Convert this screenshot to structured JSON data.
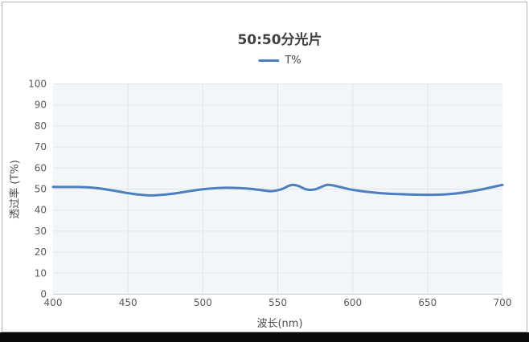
{
  "window": {
    "background": "#ffffff",
    "border_color": "#b3b3b3",
    "bottom_bar_color": "#0a0a0a"
  },
  "chart_data": {
    "type": "line",
    "title": "50:50分光片",
    "xlabel": "波长(nm)",
    "ylabel": "透过率 (T%)",
    "xlim": [
      400,
      700
    ],
    "ylim": [
      0,
      100
    ],
    "x_ticks": [
      400,
      450,
      500,
      550,
      600,
      650,
      700
    ],
    "y_ticks": [
      0,
      10,
      20,
      30,
      40,
      50,
      60,
      70,
      80,
      90,
      100
    ],
    "grid": true,
    "legend_position": "top-center",
    "colors": {
      "plot_bg": "#f2f6f9",
      "grid_line": "#e0e5ea",
      "axis_line": "#c9ccd0",
      "title_text": "#404040",
      "tick_text": "#5a5a5a",
      "axis_title_text": "#4c4c4c",
      "legend_text": "#454545"
    },
    "series": [
      {
        "name": "T%",
        "color": "#4d7ebd",
        "x": [
          400,
          408,
          416,
          424,
          432,
          440,
          448,
          456,
          464,
          472,
          480,
          490,
          500,
          508,
          516,
          524,
          532,
          540,
          546,
          552,
          557,
          560,
          564,
          568,
          571,
          575,
          579,
          583,
          587,
          592,
          598,
          606,
          614,
          622,
          630,
          638,
          646,
          654,
          662,
          670,
          678,
          686,
          693,
          700
        ],
        "values": [
          51.0,
          51.0,
          51.0,
          50.8,
          50.2,
          49.3,
          48.3,
          47.5,
          47.0,
          47.2,
          47.8,
          48.9,
          49.9,
          50.4,
          50.6,
          50.5,
          50.1,
          49.4,
          49.0,
          49.8,
          51.4,
          52.0,
          51.4,
          50.1,
          49.6,
          49.9,
          51.0,
          52.0,
          51.7,
          50.9,
          49.9,
          49.0,
          48.4,
          47.9,
          47.6,
          47.4,
          47.3,
          47.3,
          47.5,
          48.0,
          48.8,
          49.8,
          50.9,
          52.0
        ]
      }
    ]
  }
}
